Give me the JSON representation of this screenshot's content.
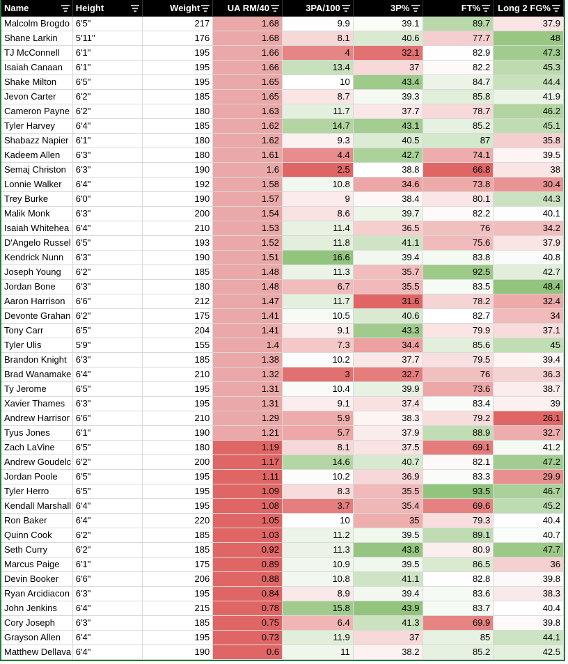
{
  "table": {
    "columns": [
      "Name",
      "Height",
      "Weight",
      "UA RM/40",
      "3PA/100",
      "3P%",
      "FT%",
      "Long 2 FG%"
    ],
    "rows": [
      [
        "Malcolm Brogdo",
        "6'5\"",
        217,
        1.68,
        9.9,
        39.1,
        89.7,
        37.9
      ],
      [
        "Shane Larkin",
        "5'11\"",
        176,
        1.68,
        8.1,
        40.6,
        77.7,
        48
      ],
      [
        "TJ McConnell",
        "6'1\"",
        195,
        1.66,
        4,
        32.1,
        82.9,
        47.3
      ],
      [
        "Isaiah Canaan",
        "6'1\"",
        195,
        1.66,
        13.4,
        37,
        82.2,
        45.3
      ],
      [
        "Shake Milton",
        "6'5\"",
        195,
        1.65,
        10,
        43.4,
        84.7,
        44.4
      ],
      [
        "Jevon Carter",
        "6'2\"",
        185,
        1.65,
        8.7,
        39.3,
        85.8,
        41.9
      ],
      [
        "Cameron Payne",
        "6'2\"",
        180,
        1.63,
        11.7,
        37.7,
        78.7,
        46.2
      ],
      [
        "Tyler Harvey",
        "6'4\"",
        185,
        1.62,
        14.7,
        43.1,
        85.2,
        45.1
      ],
      [
        "Shabazz Napier",
        "6'1\"",
        180,
        1.62,
        9.3,
        40.5,
        87,
        35.8
      ],
      [
        "Kadeem Allen",
        "6'3\"",
        180,
        1.61,
        4.4,
        42.7,
        74.1,
        39.5
      ],
      [
        "Semaj Christon",
        "6'3\"",
        190,
        1.6,
        2.5,
        38.8,
        66.8,
        38
      ],
      [
        "Lonnie Walker",
        "6'4\"",
        192,
        1.58,
        10.8,
        34.6,
        73.8,
        30.4
      ],
      [
        "Trey Burke",
        "6'0\"",
        190,
        1.57,
        9,
        38.4,
        80.1,
        44.3
      ],
      [
        "Malik Monk",
        "6'3\"",
        200,
        1.54,
        8.6,
        39.7,
        82.2,
        40.1
      ],
      [
        "Isaiah Whitehea",
        "6'4\"",
        210,
        1.53,
        11.4,
        36.5,
        76,
        34.2
      ],
      [
        "D'Angelo Russel",
        "6'5\"",
        193,
        1.52,
        11.8,
        41.1,
        75.6,
        37.9
      ],
      [
        "Kendrick Nunn",
        "6'3\"",
        190,
        1.51,
        16.6,
        39.4,
        83.8,
        40.8
      ],
      [
        "Joseph Young",
        "6'2\"",
        185,
        1.48,
        11.3,
        35.7,
        92.5,
        42.7
      ],
      [
        "Jordan Bone",
        "6'3\"",
        180,
        1.48,
        6.7,
        35.5,
        83.5,
        48.4
      ],
      [
        "Aaron Harrison",
        "6'6\"",
        212,
        1.47,
        11.7,
        31.6,
        78.2,
        32.4
      ],
      [
        "Devonte Grahan",
        "6'2\"",
        175,
        1.41,
        10.5,
        40.6,
        82.7,
        34
      ],
      [
        "Tony Carr",
        "6'5\"",
        204,
        1.41,
        9.1,
        43.3,
        79.9,
        37.1
      ],
      [
        "Tyler Ulis",
        "5'9\"",
        155,
        1.4,
        7.3,
        34.4,
        85.6,
        45
      ],
      [
        "Brandon Knight",
        "6'3\"",
        185,
        1.38,
        10.2,
        37.7,
        79.5,
        39.4
      ],
      [
        "Brad Wanamake",
        "6'4\"",
        210,
        1.32,
        3,
        32.7,
        76,
        36.3
      ],
      [
        "Ty Jerome",
        "6'5\"",
        195,
        1.31,
        10.4,
        39.9,
        73.6,
        38.7
      ],
      [
        "Xavier Thames",
        "6'3\"",
        195,
        1.31,
        9.1,
        37.4,
        83.4,
        39
      ],
      [
        "Andrew Harrisor",
        "6'6\"",
        210,
        1.29,
        5.9,
        38.3,
        79.2,
        26.1
      ],
      [
        "Tyus Jones",
        "6'1\"",
        190,
        1.21,
        5.7,
        37.9,
        88.9,
        32.7
      ],
      [
        "Zach LaVine",
        "6'5\"",
        180,
        1.19,
        8.1,
        37.5,
        69.1,
        41.2
      ],
      [
        "Andrew Goudelc",
        "6'2\"",
        200,
        1.17,
        14.6,
        40.7,
        82.1,
        47.2
      ],
      [
        "Jordan Poole",
        "6'5\"",
        195,
        1.11,
        10.2,
        36.9,
        83.3,
        29.9
      ],
      [
        "Tyler Herro",
        "6'5\"",
        195,
        1.09,
        8.3,
        35.5,
        93.5,
        46.7
      ],
      [
        "Kendall Marshall",
        "6'4\"",
        195,
        1.08,
        3.7,
        35.4,
        69.6,
        45.2
      ],
      [
        "Ron Baker",
        "6'4\"",
        220,
        1.05,
        10,
        35,
        79.3,
        40.4
      ],
      [
        "Quinn Cook",
        "6'2\"",
        185,
        1.03,
        11.2,
        39.5,
        89.1,
        40.7
      ],
      [
        "Seth Curry",
        "6'2\"",
        185,
        0.92,
        11.3,
        43.8,
        80.9,
        47.7
      ],
      [
        "Marcus Paige",
        "6'1\"",
        175,
        0.89,
        10.9,
        39.5,
        86.5,
        36
      ],
      [
        "Devin Booker",
        "6'6\"",
        206,
        0.88,
        10.8,
        41.1,
        82.8,
        39.8
      ],
      [
        "Ryan Arcidiacon",
        "6'3\"",
        195,
        0.84,
        8.9,
        39.4,
        83.6,
        38.3
      ],
      [
        "John Jenkins",
        "6'4\"",
        215,
        0.78,
        15.8,
        43.9,
        83.7,
        40.4
      ],
      [
        "Cory Joseph",
        "6'3\"",
        185,
        0.75,
        6.4,
        41.3,
        69.9,
        39.8
      ],
      [
        "Grayson Allen",
        "6'4\"",
        195,
        0.73,
        11.9,
        37,
        85,
        44.1
      ],
      [
        "Matthew Dellava",
        "6'4\"",
        190,
        0.6,
        11,
        38.2,
        85.2,
        42.5
      ]
    ]
  }
}
